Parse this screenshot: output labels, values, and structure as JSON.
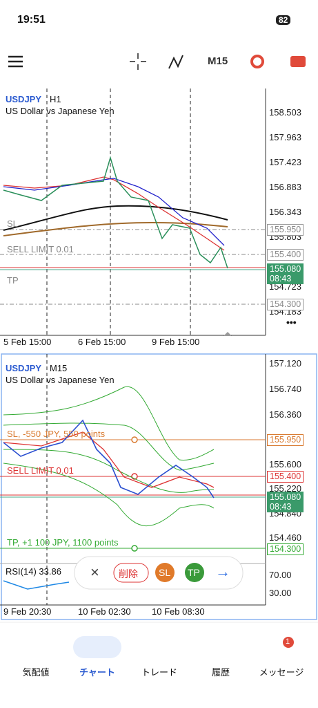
{
  "status": {
    "time": "19:51",
    "battery": "82"
  },
  "toolbar": {
    "timeframe": "M15"
  },
  "chart1": {
    "symbol": "USDJPY",
    "period": "H1",
    "description": "US Dollar vs Japanese Yen",
    "price_ticks": [
      "158.503",
      "157.963",
      "157.423",
      "156.883",
      "156.343",
      "155.803",
      "154.723",
      "154.183"
    ],
    "sl_label": "SL",
    "sell_limit_label": "SELL LIMIT 0.01",
    "tp_label": "TP",
    "sl_price": "155.950",
    "sell_limit_price": "155.400",
    "current_price": "155.080",
    "countdown": "08:43",
    "tp_price": "154.300",
    "time_labels": [
      "5 Feb 15:00",
      "6 Feb 15:00",
      "9 Feb 15:00"
    ],
    "more": "•••"
  },
  "chart2": {
    "symbol": "USDJPY",
    "period": "M15",
    "description": "US Dollar vs Japanese Yen",
    "price_ticks": [
      "157.120",
      "156.740",
      "156.360",
      "155.600",
      "155.220",
      "154.840",
      "154.460"
    ],
    "sl_label": "SL, -550 JPY, 550 points",
    "sell_limit_label": "SELL LIMIT 0.01",
    "tp_label": "TP, +1 100 JPY, 1100 points",
    "sl_price": "155.950",
    "sell_limit_price": "155.400",
    "current_price": "155.080",
    "countdown": "08:43",
    "tp_price": "154.300",
    "rsi_label": "RSI(14) 33.86",
    "rsi_ticks": [
      "70.00",
      "30.00"
    ],
    "time_labels": [
      "9 Feb 20:30",
      "10 Feb 02:30",
      "10 Feb 08:30"
    ]
  },
  "order_toolbar": {
    "close": "×",
    "delete": "削除",
    "sl": "SL",
    "tp": "TP",
    "next": "→"
  },
  "bottom_nav": {
    "items": [
      "気配値",
      "チャート",
      "トレード",
      "履歴",
      "メッセージ"
    ],
    "badge": "1"
  }
}
